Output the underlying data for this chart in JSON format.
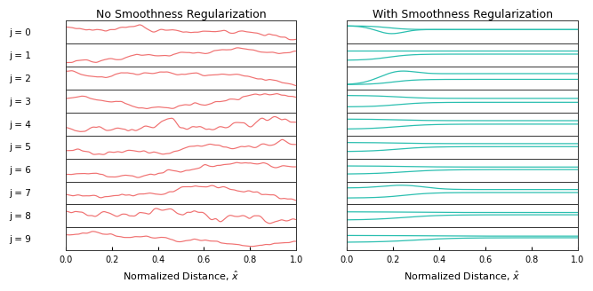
{
  "n_rows": 10,
  "left_title": "No Smoothness Regularization",
  "right_title": "With Smoothness Regularization",
  "xlabel": "Normalized Distance, $\\hat{x}$",
  "row_labels": [
    "j = 0",
    "j = 1",
    "j = 2",
    "j = 3",
    "j = 4",
    "j = 5",
    "j = 6",
    "j = 7",
    "j = 8",
    "j = 9"
  ],
  "left_color": "#f07070",
  "right_color": "#2bbfb0",
  "background_color": "#ffffff",
  "xlim": [
    0.0,
    1.0
  ],
  "xticks": [
    0.0,
    0.2,
    0.4,
    0.6,
    0.8,
    1.0
  ],
  "seed": 42
}
